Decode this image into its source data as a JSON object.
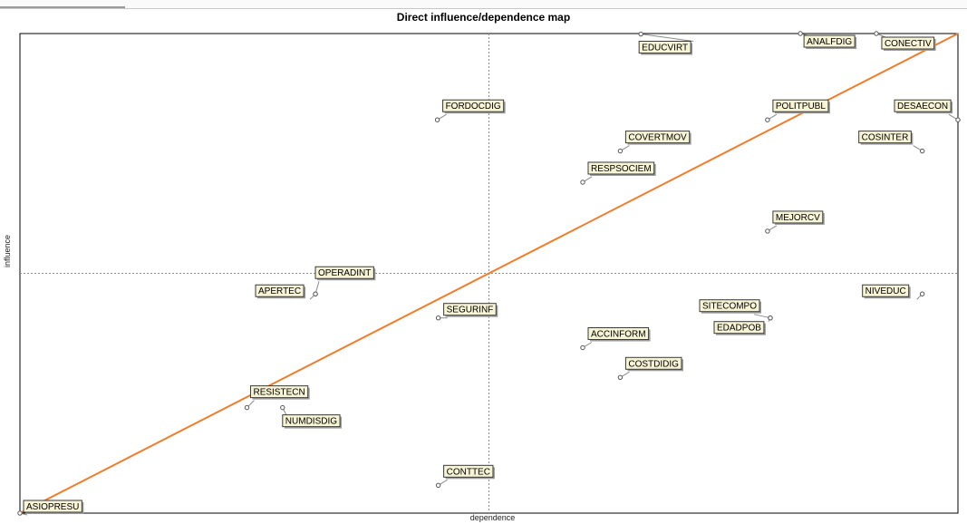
{
  "chart_data": {
    "type": "scatter",
    "title": "Direct influence/dependence map",
    "xlabel": "dependence",
    "ylabel": "influence",
    "xlim": [
      0,
      100
    ],
    "ylim": [
      0,
      100
    ],
    "midlines": {
      "x": 50,
      "y": 50
    },
    "grid": false,
    "legend": "none",
    "colors": {
      "trend_line": "#f07d2b",
      "label_fill": "#f7f3d5",
      "axis": "#000000"
    },
    "trend_line": {
      "from": [
        0,
        0
      ],
      "to": [
        100,
        100
      ]
    },
    "points": [
      {
        "label": "EDUCVIRT",
        "x": 66.2,
        "y": 99.9
      },
      {
        "label": "ANALFDIG",
        "x": 83.2,
        "y": 100.0
      },
      {
        "label": "CONECTIV",
        "x": 91.3,
        "y": 100.0
      },
      {
        "label": "FORDOCDIG",
        "x": 44.5,
        "y": 82.0
      },
      {
        "label": "POLITPUBL",
        "x": 79.7,
        "y": 82.0
      },
      {
        "label": "DESAECON",
        "x": 100.0,
        "y": 82.0
      },
      {
        "label": "COVERTMOV",
        "x": 64.0,
        "y": 75.5
      },
      {
        "label": "COSINTER",
        "x": 96.2,
        "y": 75.5
      },
      {
        "label": "RESPSOCIEM",
        "x": 60.0,
        "y": 69.0
      },
      {
        "label": "MEJORCV",
        "x": 79.7,
        "y": 58.8
      },
      {
        "label": "OPERADINT",
        "x": 31.5,
        "y": 45.7
      },
      {
        "label": "APERTEC",
        "x": 31.5,
        "y": 45.7
      },
      {
        "label": "SEGURINF",
        "x": 44.6,
        "y": 40.7
      },
      {
        "label": "SITECOMPO",
        "x": 80.0,
        "y": 40.7
      },
      {
        "label": "NIVEDUC",
        "x": 96.2,
        "y": 45.7
      },
      {
        "label": "EDADPOB",
        "x": 80.0,
        "y": 40.7
      },
      {
        "label": "ACCINFORM",
        "x": 60.0,
        "y": 34.5
      },
      {
        "label": "COSTDIDIG",
        "x": 64.0,
        "y": 28.3
      },
      {
        "label": "RESISTECN",
        "x": 24.2,
        "y": 22.0
      },
      {
        "label": "NUMDISDIG",
        "x": 28.0,
        "y": 22.0
      },
      {
        "label": "CONTTEC",
        "x": 44.6,
        "y": 5.8
      },
      {
        "label": "ASIOPRESU",
        "x": 0.0,
        "y": 0.0
      }
    ]
  }
}
